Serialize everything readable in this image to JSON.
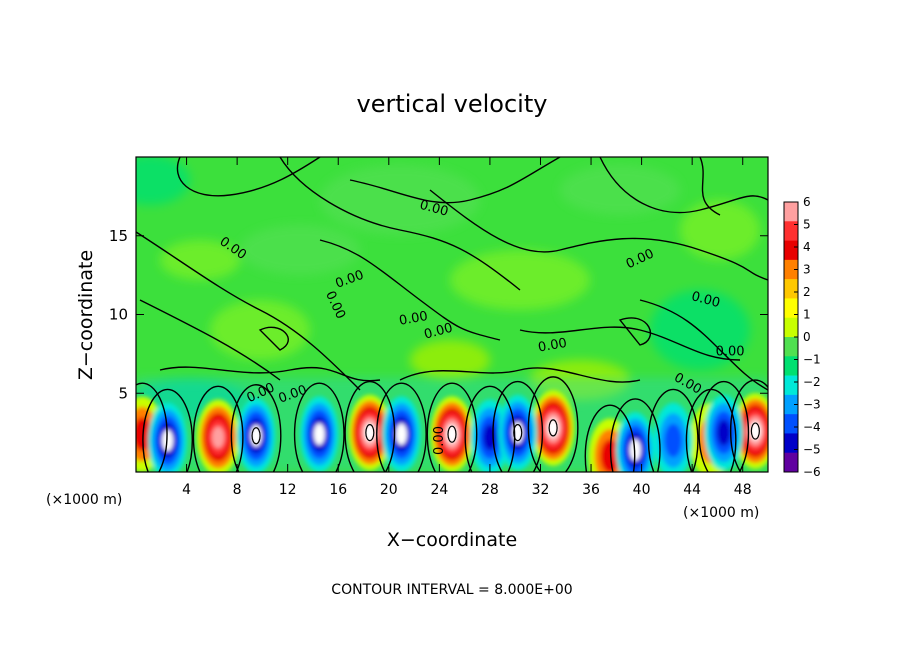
{
  "chart_data": {
    "type": "heatmap",
    "title": "vertical velocity",
    "xlabel": "X−coordinate",
    "ylabel": "Z−coordinate",
    "x_unit_left": "(×1000 m)",
    "x_unit_right": "(×1000 m)",
    "footer": "CONTOUR INTERVAL = 8.000E+00",
    "contour_label": "0.00",
    "xlim": [
      0,
      50
    ],
    "ylim": [
      0,
      20
    ],
    "x_ticks": [
      4,
      8,
      12,
      16,
      20,
      24,
      28,
      32,
      36,
      40,
      44,
      48
    ],
    "y_ticks": [
      5,
      10,
      15
    ],
    "colorbar": {
      "min": -6,
      "max": 6,
      "labels": [
        "6",
        "5",
        "4",
        "3",
        "2",
        "1",
        "0",
        "−1",
        "−2",
        "−3",
        "−4",
        "−5",
        "−6"
      ],
      "colors": [
        "#ffa0a0",
        "#ff3030",
        "#e80000",
        "#ff8000",
        "#ffc800",
        "#ffff00",
        "#c8ff00",
        "#50e050",
        "#00e070",
        "#00e8d8",
        "#00a0ff",
        "#0050ff",
        "#0000c8",
        "#6000a0"
      ]
    },
    "cells_updrafts": [
      {
        "x": 0.5,
        "z": 2.4,
        "w": 3
      },
      {
        "x": 6.5,
        "z": 2.2,
        "w": 5
      },
      {
        "x": 18.5,
        "z": 2.5,
        "w": 6
      },
      {
        "x": 25.0,
        "z": 2.4,
        "w": 6
      },
      {
        "x": 33.0,
        "z": 2.8,
        "w": 6
      },
      {
        "x": 37.5,
        "z": 1.0,
        "w": 3
      },
      {
        "x": 45.5,
        "z": 2.0,
        "w": 2
      },
      {
        "x": 49.0,
        "z": 2.6,
        "w": 6
      }
    ],
    "cells_downdrafts": [
      {
        "x": 2.5,
        "z": 2.0,
        "w": -5
      },
      {
        "x": 9.5,
        "z": 2.3,
        "w": -6
      },
      {
        "x": 14.5,
        "z": 2.4,
        "w": -5
      },
      {
        "x": 21.0,
        "z": 2.4,
        "w": -5
      },
      {
        "x": 28.0,
        "z": 2.2,
        "w": -4
      },
      {
        "x": 30.2,
        "z": 2.5,
        "w": -6
      },
      {
        "x": 39.5,
        "z": 1.4,
        "w": -5
      },
      {
        "x": 42.5,
        "z": 2.0,
        "w": -3
      },
      {
        "x": 46.5,
        "z": 2.5,
        "w": -4
      }
    ]
  }
}
